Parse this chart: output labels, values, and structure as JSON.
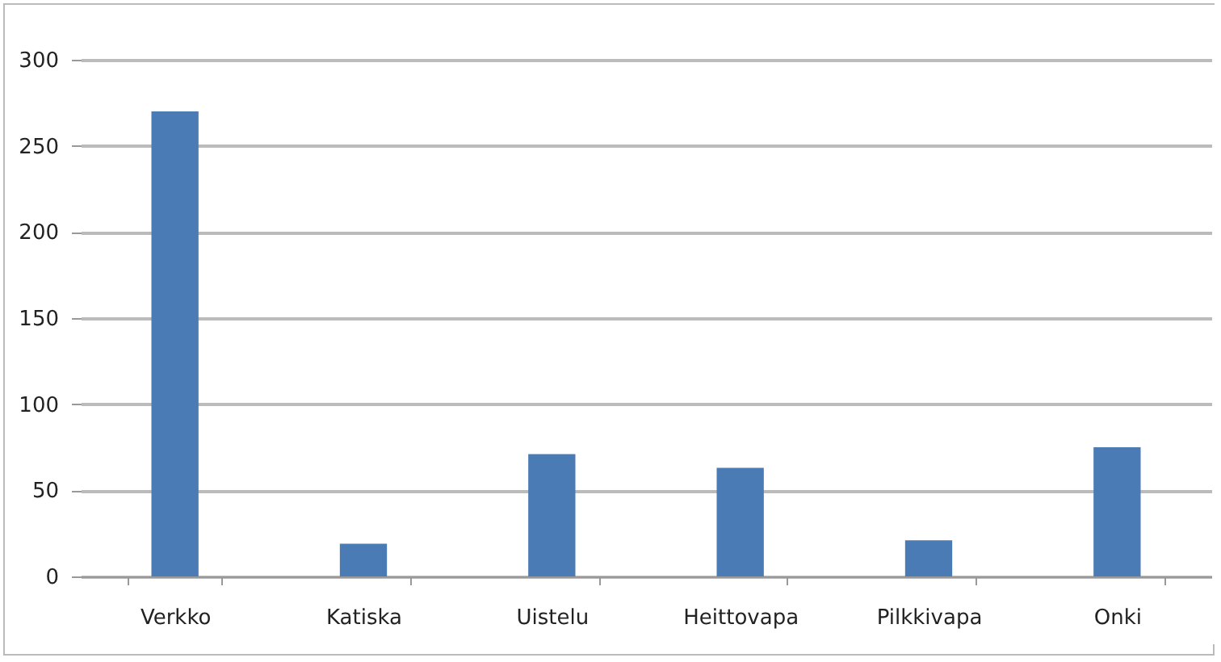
{
  "chart_data": {
    "type": "bar",
    "categories": [
      "Verkko",
      "Katiska",
      "Uistelu",
      "Heittovapa",
      "Pilkkivapa",
      "Onki"
    ],
    "values": [
      270,
      19,
      71,
      63,
      21,
      75
    ],
    "color": "#4a7bb4",
    "ylim": [
      0,
      300
    ],
    "yticks": [
      0,
      50,
      100,
      150,
      200,
      250,
      300
    ],
    "grid": "y"
  }
}
